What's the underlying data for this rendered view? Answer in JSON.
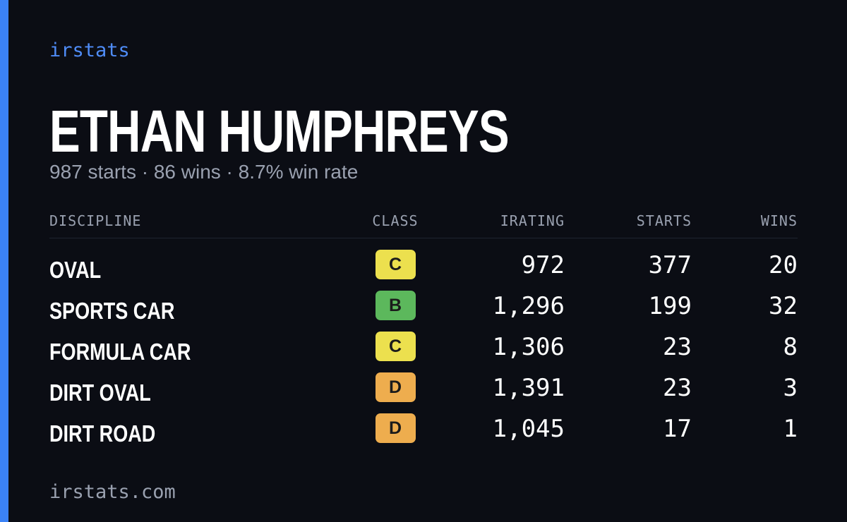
{
  "brand": "irstats",
  "name": "ETHAN HUMPHREYS",
  "subtitle": "987 starts · 86 wins · 8.7% win rate",
  "table": {
    "headers": [
      "DISCIPLINE",
      "CLASS",
      "IRATING",
      "STARTS",
      "WINS"
    ],
    "rows": [
      {
        "discipline": "OVAL",
        "class": "C",
        "class_color": "#ece04e",
        "irating": "972",
        "starts": "377",
        "wins": "20"
      },
      {
        "discipline": "SPORTS CAR",
        "class": "B",
        "class_color": "#5cb85c",
        "irating": "1,296",
        "starts": "199",
        "wins": "32"
      },
      {
        "discipline": "FORMULA CAR",
        "class": "C",
        "class_color": "#ece04e",
        "irating": "1,306",
        "starts": "23",
        "wins": "8"
      },
      {
        "discipline": "DIRT OVAL",
        "class": "D",
        "class_color": "#eead4e",
        "irating": "1,391",
        "starts": "23",
        "wins": "3"
      },
      {
        "discipline": "DIRT ROAD",
        "class": "D",
        "class_color": "#eead4e",
        "irating": "1,045",
        "starts": "17",
        "wins": "1"
      }
    ]
  },
  "footer": "irstats.com"
}
